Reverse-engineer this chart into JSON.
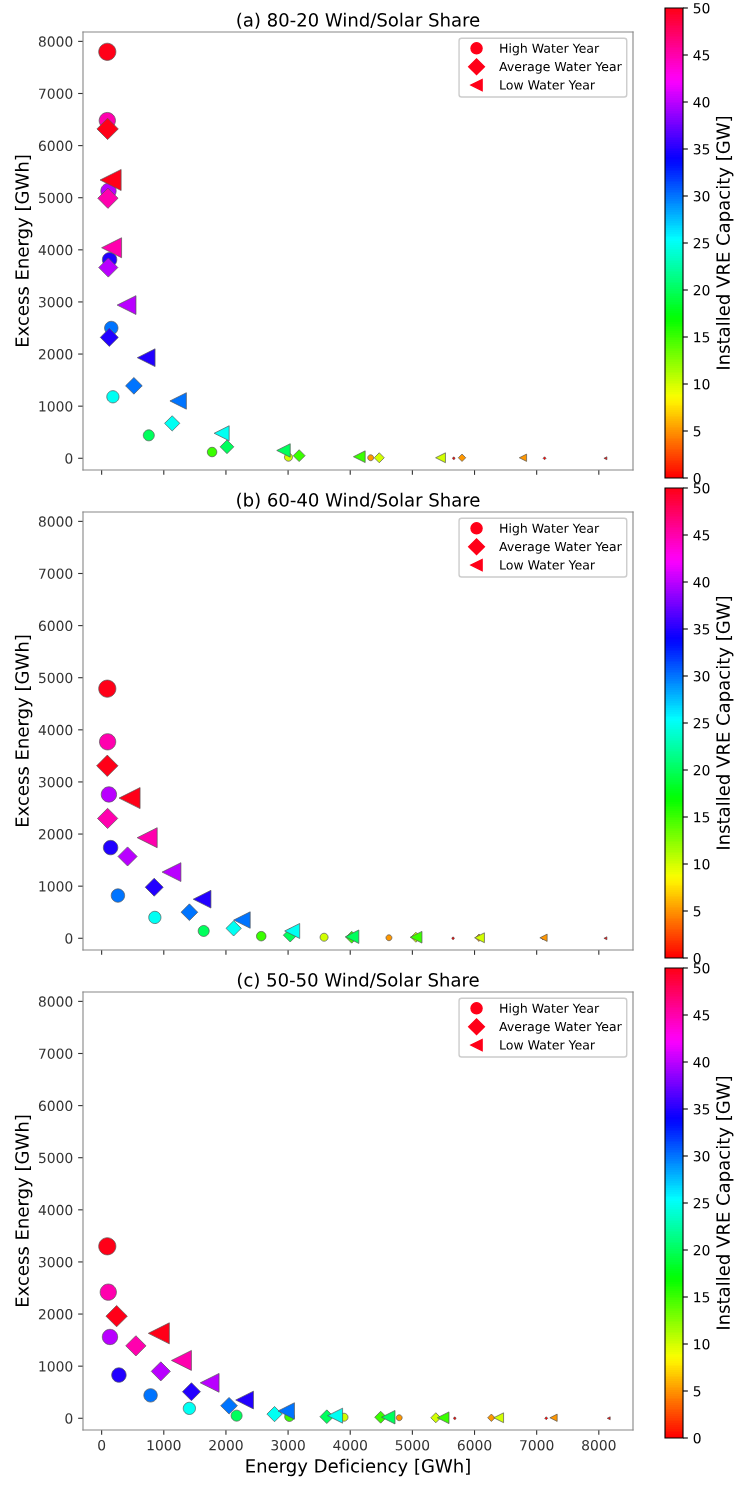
{
  "chart_data": [
    {
      "type": "bubble",
      "title": "(a) 80-20 Wind/Solar Share",
      "ylabel": "Excess Energy [GWh]",
      "clabel": "Installed VRE Capacity [GW]",
      "xlim": [
        -300,
        8550
      ],
      "xticks": [
        0,
        1000,
        2000,
        3000,
        4000,
        5000,
        6000,
        7000,
        8000
      ],
      "ylim": [
        -225,
        8180
      ],
      "yticks": [
        0,
        1000,
        2000,
        3000,
        4000,
        5000,
        6000,
        7000,
        8000
      ],
      "clim": [
        0,
        50
      ],
      "cticks": [
        0,
        5,
        10,
        15,
        20,
        25,
        30,
        35,
        40,
        45,
        50
      ],
      "tick_labels": "y",
      "grid": false,
      "legend": "top right",
      "series": [
        {
          "name": "High Water Year",
          "marker": "circle",
          "x": [
            91,
            91,
            110,
            128,
            155,
            181,
            759,
            1777,
            3006,
            4329,
            5666
          ],
          "values": [
            7800,
            6480,
            5130,
            3810,
            2500,
            1180,
            440,
            120,
            20,
            10,
            0
          ],
          "cvalues": [
            50,
            45,
            40,
            35,
            30,
            25,
            20,
            15,
            10,
            5,
            0
          ],
          "colors": [
            "#ff0018",
            "#ff00ae",
            "#b900ff",
            "#2200ff",
            "#0074ff",
            "#00fff3",
            "#00ff5c",
            "#3aff00",
            "#d1ff00",
            "#ff9700",
            "#ff0000"
          ],
          "sizes": [
            1,
            0.9,
            0.8,
            0.71,
            0.61,
            0.51,
            0.41,
            0.31,
            0.22,
            0.12,
            0.02
          ]
        },
        {
          "name": "Average Water Year",
          "marker": "diamond",
          "x": [
            96,
            101,
            107,
            123,
            519,
            1135,
            2017,
            3178,
            4467,
            5799,
            7127
          ],
          "values": [
            6320,
            4990,
            3660,
            2320,
            1390,
            670,
            220,
            50,
            10,
            10,
            0
          ],
          "cvalues": [
            50,
            45,
            40,
            35,
            30,
            25,
            20,
            15,
            10,
            5,
            0
          ],
          "colors": [
            "#ff0018",
            "#ff00ae",
            "#b900ff",
            "#2200ff",
            "#0074ff",
            "#00fff3",
            "#00ff5c",
            "#3aff00",
            "#d1ff00",
            "#ff9700",
            "#ff0000"
          ],
          "sizes": [
            1,
            0.9,
            0.8,
            0.71,
            0.61,
            0.51,
            0.41,
            0.31,
            0.22,
            0.12,
            0.02
          ]
        },
        {
          "name": "Low Water Year",
          "marker": "triangle",
          "x": [
            144,
            160,
            401,
            717,
            1231,
            1931,
            2926,
            4146,
            5453,
            6779,
            8106
          ],
          "values": [
            5340,
            4040,
            2940,
            1930,
            1100,
            480,
            150,
            30,
            10,
            10,
            0
          ],
          "cvalues": [
            50,
            45,
            40,
            35,
            30,
            25,
            20,
            15,
            10,
            5,
            0
          ],
          "colors": [
            "#ff0018",
            "#ff00ae",
            "#b900ff",
            "#2200ff",
            "#0074ff",
            "#00fff3",
            "#00ff5c",
            "#3aff00",
            "#d1ff00",
            "#ff9700",
            "#ff0000"
          ],
          "sizes": [
            1,
            0.9,
            0.8,
            0.71,
            0.61,
            0.51,
            0.41,
            0.31,
            0.22,
            0.12,
            0.02
          ]
        }
      ]
    },
    {
      "type": "bubble",
      "title": "(b) 60-40 Wind/Solar Share",
      "ylabel": "Excess Energy [GWh]",
      "clabel": "Installed VRE Capacity [GW]",
      "xlim": [
        -300,
        8550
      ],
      "xticks": [
        0,
        1000,
        2000,
        3000,
        4000,
        5000,
        6000,
        7000,
        8000
      ],
      "ylim": [
        -225,
        8180
      ],
      "yticks": [
        0,
        1000,
        2000,
        3000,
        4000,
        5000,
        6000,
        7000,
        8000
      ],
      "clim": [
        0,
        50
      ],
      "cticks": [
        0,
        5,
        10,
        15,
        20,
        25,
        30,
        35,
        40,
        45,
        50
      ],
      "tick_labels": "y",
      "grid": false,
      "legend": "top right",
      "series": [
        {
          "name": "High Water Year",
          "marker": "circle",
          "x": [
            91,
            96,
            117,
            144,
            262,
            856,
            1642,
            2568,
            3579,
            4623,
            5655
          ],
          "values": [
            4790,
            3770,
            2760,
            1740,
            820,
            400,
            140,
            40,
            20,
            10,
            0
          ],
          "cvalues": [
            50,
            45,
            40,
            35,
            30,
            25,
            20,
            15,
            10,
            5,
            0
          ],
          "colors": [
            "#ff0018",
            "#ff00ae",
            "#b900ff",
            "#2200ff",
            "#0074ff",
            "#00fff3",
            "#00ff5c",
            "#3aff00",
            "#d1ff00",
            "#ff9700",
            "#ff0000"
          ],
          "sizes": [
            1,
            0.9,
            0.8,
            0.71,
            0.61,
            0.51,
            0.41,
            0.31,
            0.22,
            0.12,
            0.02
          ]
        },
        {
          "name": "Average Water Year",
          "marker": "diamond",
          "x": [
            91,
            96,
            417,
            846,
            1412,
            2124,
            3034,
            4024,
            5056,
            6072,
            7100
          ],
          "values": [
            3310,
            2300,
            1570,
            980,
            500,
            190,
            60,
            20,
            20,
            10,
            0
          ],
          "cvalues": [
            50,
            45,
            40,
            35,
            30,
            25,
            20,
            15,
            10,
            5,
            0
          ],
          "colors": [
            "#ff0018",
            "#ff00ae",
            "#b900ff",
            "#2200ff",
            "#0074ff",
            "#00fff3",
            "#00ff5c",
            "#3aff00",
            "#d1ff00",
            "#ff9700",
            "#ff0000"
          ],
          "sizes": [
            1,
            0.9,
            0.8,
            0.71,
            0.61,
            0.51,
            0.41,
            0.31,
            0.22,
            0.12,
            0.02
          ]
        },
        {
          "name": "Low Water Year",
          "marker": "triangle",
          "x": [
            449,
            733,
            1124,
            1616,
            2258,
            3066,
            4030,
            5060,
            6080,
            7110,
            8106
          ],
          "values": [
            2690,
            1930,
            1270,
            750,
            350,
            140,
            30,
            20,
            10,
            10,
            0
          ],
          "cvalues": [
            50,
            45,
            40,
            35,
            30,
            25,
            20,
            15,
            10,
            5,
            0
          ],
          "colors": [
            "#ff0018",
            "#ff00ae",
            "#b900ff",
            "#2200ff",
            "#0074ff",
            "#00fff3",
            "#00ff5c",
            "#3aff00",
            "#d1ff00",
            "#ff9700",
            "#ff0000"
          ],
          "sizes": [
            1,
            0.9,
            0.8,
            0.71,
            0.61,
            0.51,
            0.41,
            0.31,
            0.22,
            0.12,
            0.02
          ]
        }
      ]
    },
    {
      "type": "bubble",
      "title": "(c) 50-50 Wind/Solar Share",
      "xlabel": "Energy Deficiency [GWh]",
      "ylabel": "Excess Energy [GWh]",
      "clabel": "Installed VRE Capacity [GW]",
      "xlim": [
        -300,
        8550
      ],
      "xticks": [
        0,
        1000,
        2000,
        3000,
        4000,
        5000,
        6000,
        7000,
        8000
      ],
      "ylim": [
        -225,
        8180
      ],
      "yticks": [
        0,
        1000,
        2000,
        3000,
        4000,
        5000,
        6000,
        7000,
        8000
      ],
      "clim": [
        0,
        50
      ],
      "cticks": [
        0,
        5,
        10,
        15,
        20,
        25,
        30,
        35,
        40,
        45,
        50
      ],
      "grid": false,
      "legend": "top right",
      "series": [
        {
          "name": "High Water Year",
          "marker": "circle",
          "x": [
            91,
            107,
            134,
            278,
            787,
            1412,
            2172,
            3022,
            3900,
            4788,
            5682
          ],
          "values": [
            3300,
            2420,
            1560,
            830,
            440,
            190,
            50,
            30,
            20,
            10,
            0
          ],
          "cvalues": [
            50,
            45,
            40,
            35,
            30,
            25,
            20,
            15,
            10,
            5,
            0
          ],
          "colors": [
            "#ff0018",
            "#ff00ae",
            "#b900ff",
            "#2200ff",
            "#0074ff",
            "#00fff3",
            "#00ff5c",
            "#3aff00",
            "#d1ff00",
            "#ff9700",
            "#ff0000"
          ],
          "sizes": [
            1,
            0.9,
            0.8,
            0.71,
            0.61,
            0.51,
            0.41,
            0.31,
            0.22,
            0.12,
            0.02
          ]
        },
        {
          "name": "Average Water Year",
          "marker": "diamond",
          "x": [
            241,
            551,
            952,
            1445,
            2050,
            2782,
            3623,
            4490,
            5377,
            6271,
            7154
          ],
          "values": [
            1960,
            1390,
            900,
            510,
            240,
            80,
            30,
            20,
            10,
            10,
            0
          ],
          "cvalues": [
            50,
            45,
            40,
            35,
            30,
            25,
            20,
            15,
            10,
            5,
            0
          ],
          "colors": [
            "#ff0018",
            "#ff00ae",
            "#b900ff",
            "#2200ff",
            "#0074ff",
            "#00fff3",
            "#00ff5c",
            "#3aff00",
            "#d1ff00",
            "#ff9700",
            "#ff0000"
          ],
          "sizes": [
            1,
            0.9,
            0.8,
            0.71,
            0.61,
            0.51,
            0.41,
            0.31,
            0.22,
            0.12,
            0.02
          ]
        },
        {
          "name": "Low Water Year",
          "marker": "triangle",
          "x": [
            920,
            1284,
            1738,
            2300,
            2970,
            3756,
            4612,
            5495,
            6388,
            7271,
            8159
          ],
          "values": [
            1630,
            1110,
            680,
            350,
            140,
            50,
            20,
            10,
            10,
            10,
            0
          ],
          "cvalues": [
            50,
            45,
            40,
            35,
            30,
            25,
            20,
            15,
            10,
            5,
            0
          ],
          "colors": [
            "#ff0018",
            "#ff00ae",
            "#b900ff",
            "#2200ff",
            "#0074ff",
            "#00fff3",
            "#00ff5c",
            "#3aff00",
            "#d1ff00",
            "#ff9700",
            "#ff0000"
          ],
          "sizes": [
            1,
            0.9,
            0.8,
            0.71,
            0.61,
            0.51,
            0.41,
            0.31,
            0.22,
            0.12,
            0.02
          ]
        }
      ]
    }
  ]
}
